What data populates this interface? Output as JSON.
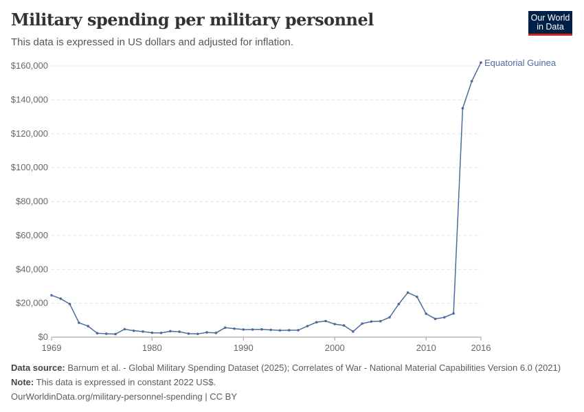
{
  "header": {
    "title": "Military spending per military personnel",
    "subtitle": "This data is expressed in US dollars and adjusted for inflation.",
    "logo": "Our World in Data"
  },
  "chart_data": {
    "type": "line",
    "title": "Military spending per military personnel",
    "subtitle": "This data is expressed in US dollars and adjusted for inflation.",
    "x_ticks": [
      "1969",
      "1980",
      "1990",
      "2000",
      "2010",
      "2016"
    ],
    "y_ticks": [
      "$0",
      "$20,000",
      "$40,000",
      "$60,000",
      "$80,000",
      "$100,000",
      "$120,000",
      "$140,000",
      "$160,000"
    ],
    "xlim": [
      1969,
      2016
    ],
    "ylim": [
      0,
      160000
    ],
    "grid": "horizontal dashed",
    "series": [
      {
        "name": "Equatorial Guinea",
        "color": "#4c6a9c",
        "x": [
          1969,
          1970,
          1971,
          1972,
          1973,
          1974,
          1975,
          1976,
          1977,
          1978,
          1979,
          1980,
          1981,
          1982,
          1983,
          1984,
          1985,
          1986,
          1987,
          1988,
          1989,
          1990,
          1991,
          1992,
          1993,
          1994,
          1995,
          1996,
          1997,
          1998,
          1999,
          2000,
          2001,
          2002,
          2003,
          2004,
          2005,
          2006,
          2007,
          2008,
          2009,
          2010,
          2011,
          2012,
          2013,
          2014,
          2015,
          2016
        ],
        "y": [
          24700,
          22700,
          19500,
          8500,
          6500,
          2300,
          2000,
          1800,
          4700,
          3800,
          3300,
          2600,
          2500,
          3500,
          3200,
          2100,
          1900,
          2800,
          2500,
          5600,
          5000,
          4500,
          4500,
          4600,
          4300,
          4000,
          4100,
          4100,
          6500,
          8800,
          9500,
          7700,
          6900,
          3300,
          8000,
          9200,
          9400,
          11700,
          19500,
          26300,
          23800,
          13800,
          10800,
          11700,
          14000,
          135000,
          151000,
          162000
        ]
      }
    ]
  },
  "footer": {
    "source_label": "Data source:",
    "source": " Barnum et al. - Global Military Spending Dataset (2025); Correlates of War - National Material Capabilities Version 6.0 (2021)",
    "note_label": "Note:",
    "note": " This data is expressed in constant 2022 US$.",
    "url": "OurWorldinData.org/military-personnel-spending | CC BY"
  }
}
